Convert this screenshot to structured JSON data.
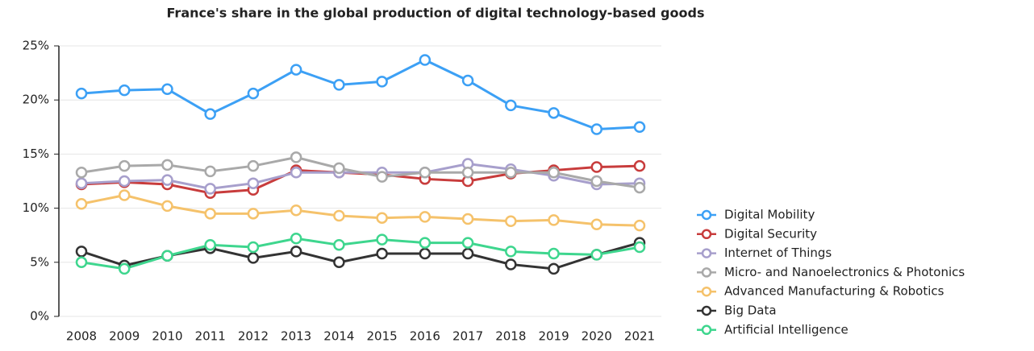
{
  "chart_data": {
    "type": "line",
    "title": "France's share in the global production of digital technology-based goods",
    "categories": [
      "2008",
      "2009",
      "2010",
      "2011",
      "2012",
      "2013",
      "2014",
      "2015",
      "2016",
      "2017",
      "2018",
      "2019",
      "2020",
      "2021"
    ],
    "series": [
      {
        "name": "Digital Mobility",
        "color": "#3ca0f5",
        "values": [
          20.6,
          20.9,
          21.0,
          18.7,
          20.6,
          22.8,
          21.4,
          21.7,
          23.7,
          21.8,
          19.5,
          18.8,
          17.3,
          17.5
        ]
      },
      {
        "name": "Digital Security",
        "color": "#c83c3c",
        "values": [
          12.2,
          12.4,
          12.2,
          11.4,
          11.7,
          13.5,
          13.3,
          13.1,
          12.7,
          12.5,
          13.2,
          13.5,
          13.8,
          13.9
        ]
      },
      {
        "name": "Internet of Things",
        "color": "#a79fcc",
        "values": [
          12.3,
          12.5,
          12.6,
          11.8,
          12.3,
          13.3,
          13.3,
          13.3,
          13.3,
          14.1,
          13.6,
          13.0,
          12.2,
          12.3
        ]
      },
      {
        "name": "Micro- and Nanoelectronics & Photonics",
        "color": "#a9a9a9",
        "values": [
          13.3,
          13.9,
          14.0,
          13.4,
          13.9,
          14.7,
          13.7,
          12.9,
          13.3,
          13.3,
          13.3,
          13.3,
          12.5,
          11.9
        ]
      },
      {
        "name": "Advanced Manufacturing & Robotics",
        "color": "#f5c26b",
        "values": [
          10.4,
          11.2,
          10.2,
          9.5,
          9.5,
          9.8,
          9.3,
          9.1,
          9.2,
          9.0,
          8.8,
          8.9,
          8.5,
          8.4
        ]
      },
      {
        "name": "Big Data",
        "color": "#333333",
        "values": [
          6.0,
          4.7,
          5.6,
          6.3,
          5.4,
          6.0,
          5.0,
          5.8,
          5.8,
          5.8,
          4.8,
          4.4,
          5.7,
          6.8
        ]
      },
      {
        "name": "Artificial Intelligence",
        "color": "#3ed68e",
        "values": [
          5.0,
          4.4,
          5.6,
          6.6,
          6.4,
          7.2,
          6.6,
          7.1,
          6.8,
          6.8,
          6.0,
          5.8,
          5.7,
          6.4
        ]
      }
    ],
    "ylim": [
      0,
      25
    ],
    "yticks": [
      {
        "value": 0,
        "label": "0%"
      },
      {
        "value": 5,
        "label": "5%"
      },
      {
        "value": 10,
        "label": "10%"
      },
      {
        "value": 15,
        "label": "15%"
      },
      {
        "value": 20,
        "label": "20%"
      },
      {
        "value": 25,
        "label": "25%"
      }
    ],
    "grid": true,
    "legend": "right"
  }
}
